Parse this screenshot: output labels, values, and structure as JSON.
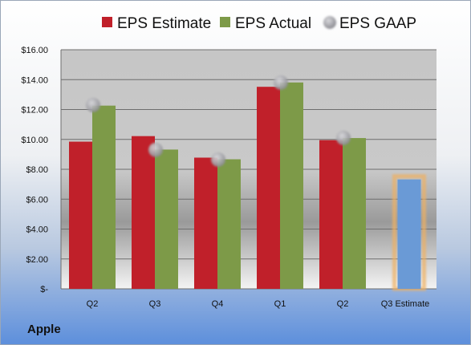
{
  "company": "Apple",
  "chart_data": {
    "type": "bar",
    "categories": [
      "Q2",
      "Q3",
      "Q4",
      "Q1",
      "Q2",
      "Q3 Estimate"
    ],
    "series": [
      {
        "name": "EPS Estimate",
        "values": [
          9.85,
          10.22,
          8.78,
          13.52,
          9.95,
          null
        ],
        "color": "#c0202a"
      },
      {
        "name": "EPS Actual",
        "values": [
          12.26,
          9.32,
          8.67,
          13.81,
          10.09,
          7.32
        ],
        "color": "#7d9a48"
      },
      {
        "name": "EPS GAAP",
        "type": "scatter",
        "values": [
          12.3,
          9.3,
          8.65,
          13.8,
          10.1,
          null
        ],
        "color": "#9a9aa0"
      }
    ],
    "estimate_bar_color": "#6a9ad6",
    "estimate_glow_color": "#f0b060",
    "ylim": [
      0,
      16
    ],
    "yticks": [
      0,
      2,
      4,
      6,
      8,
      10,
      12,
      14,
      16
    ],
    "ytick_labels": [
      "$-",
      "$2.00",
      "$4.00",
      "$6.00",
      "$8.00",
      "$10.00",
      "$12.00",
      "$14.00",
      "$16.00"
    ],
    "grid": true,
    "legend_position": "top"
  }
}
